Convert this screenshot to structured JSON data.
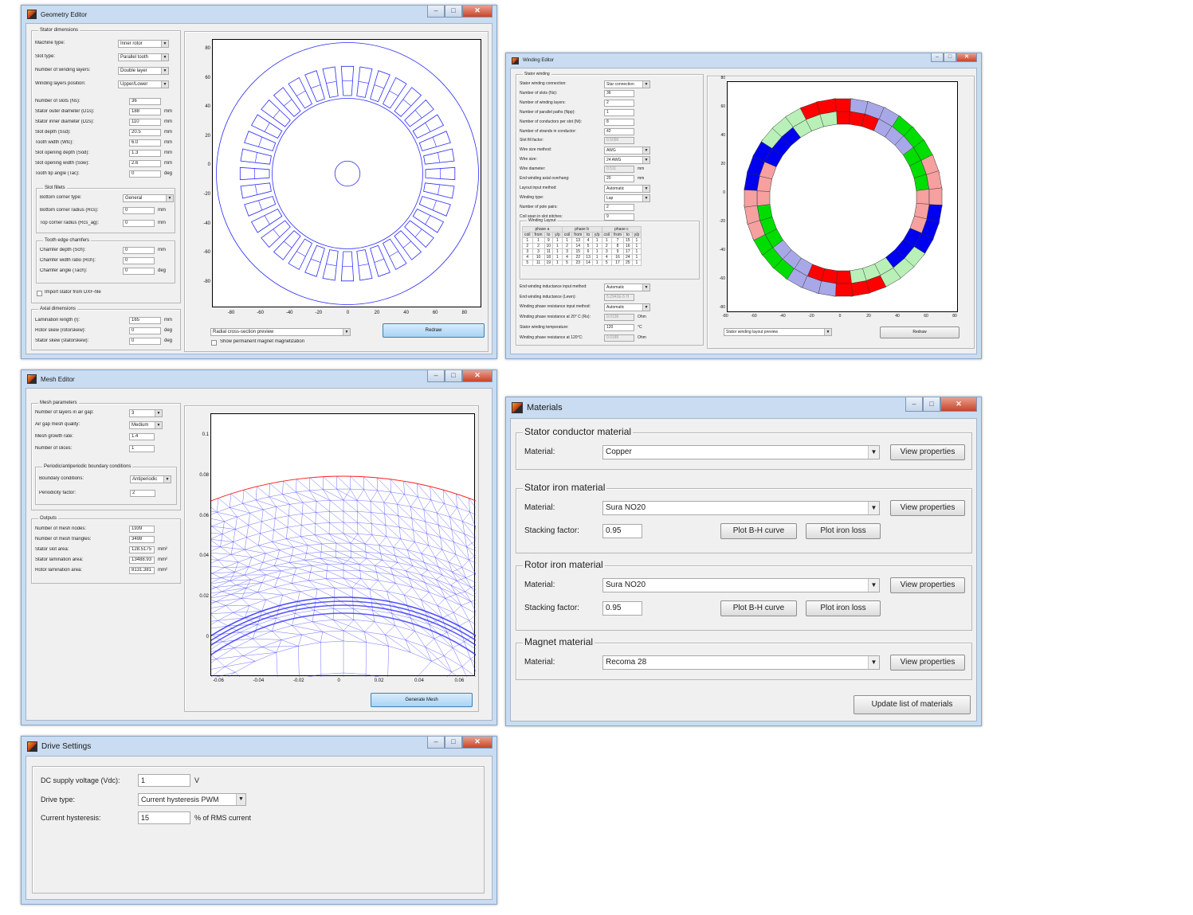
{
  "geometry": {
    "title": "Geometry Editor",
    "stator_group": "Stator dimensions",
    "fields": [
      {
        "label": "Machine type:",
        "value": "Inner rotor",
        "kind": "select"
      },
      {
        "label": "Slot type:",
        "value": "Parallel tooth",
        "kind": "select"
      },
      {
        "label": "Number of winding layers:",
        "value": "Double layer",
        "kind": "select"
      },
      {
        "label": "Winding layers position:",
        "value": "Upper/Lower",
        "kind": "select"
      }
    ],
    "dims": [
      {
        "label": "Number of slots (Ns):",
        "value": "36",
        "unit": ""
      },
      {
        "label": "Stator outer diameter (D1s):",
        "value": "188",
        "unit": "mm"
      },
      {
        "label": "Stator inner diameter (D2s):",
        "value": "110",
        "unit": "mm"
      },
      {
        "label": "Slot depth (Ssd):",
        "value": "20.5",
        "unit": "mm"
      },
      {
        "label": "Tooth width (Wtc):",
        "value": "6.0",
        "unit": "mm"
      },
      {
        "label": "Slot opening depth (Sod):",
        "value": "1.3",
        "unit": "mm"
      },
      {
        "label": "Slot opening width (Sow):",
        "value": "2.6",
        "unit": "mm"
      },
      {
        "label": "Tooth tip angle (Tac):",
        "value": "0",
        "unit": "deg"
      }
    ],
    "slot_fillets_group": "Slot fillets",
    "fillets": [
      {
        "label": "Bottom corner type:",
        "value": "General",
        "unit": "",
        "kind": "select"
      },
      {
        "label": "Bottom corner radius (Rcs):",
        "value": "0",
        "unit": "mm"
      },
      {
        "label": "Top corner radius (Rcs_ag):",
        "value": "0",
        "unit": "mm"
      }
    ],
    "chamfer_group": "Tooth edge chamfers",
    "chamfers": [
      {
        "label": "Chamfer depth (Sch):",
        "value": "0",
        "unit": "mm"
      },
      {
        "label": "Chamfer width ratio (Rch):",
        "value": "0",
        "unit": ""
      },
      {
        "label": "Chamfer angle (Tach):",
        "value": "0",
        "unit": "deg"
      }
    ],
    "import_label": "Import stator from DXF-file",
    "axial_group": "Axial dimensions",
    "axial": [
      {
        "label": "Lamination length (l):",
        "value": "165",
        "unit": "mm"
      },
      {
        "label": "Rotor skew (rotorskew):",
        "value": "0",
        "unit": "deg"
      },
      {
        "label": "Stator skew (statorskew):",
        "value": "0",
        "unit": "deg"
      }
    ],
    "view_select": "Radial cross-section preview",
    "magnet_check": "Show permanent magnet magnetization",
    "redraw": "Redraw",
    "yticks": [
      "80",
      "60",
      "40",
      "20",
      "0",
      "-20",
      "-40",
      "-60",
      "-80"
    ],
    "xticks": [
      "-80",
      "-60",
      "-40",
      "-20",
      "0",
      "20",
      "40",
      "60",
      "80"
    ]
  },
  "winding": {
    "title": "Winding Editor",
    "group": "Stator winding",
    "rows": [
      {
        "label": "Stator winding connection:",
        "value": "Star connection",
        "kind": "select"
      },
      {
        "label": "Number of slots (Ns):",
        "value": "36"
      },
      {
        "label": "Number of winding layers:",
        "value": "2"
      },
      {
        "label": "Number of parallel paths (Npp):",
        "value": "1"
      },
      {
        "label": "Number of conductors per slot (Nt):",
        "value": "8"
      },
      {
        "label": "Number of strands in conductor:",
        "value": "42"
      },
      {
        "label": "Slot fill factor:",
        "value": "0.5090",
        "kind": "dis"
      },
      {
        "label": "Wire size method:",
        "value": "AWG",
        "kind": "select"
      },
      {
        "label": "Wire size:",
        "value": "24 AWG",
        "kind": "select"
      },
      {
        "label": "Wire diameter:",
        "value": "0.511",
        "unit": "mm",
        "kind": "dis"
      },
      {
        "label": "End winding axial overhang:",
        "value": "20",
        "unit": "mm"
      },
      {
        "label": "Layout input method:",
        "value": "Automatic",
        "kind": "select"
      },
      {
        "label": "Winding type:",
        "value": "Lap",
        "kind": "select"
      },
      {
        "label": "Number of pole pairs:",
        "value": "2"
      },
      {
        "label": "Coil span in slot pitches:",
        "value": "9"
      }
    ],
    "layout_group": "Winding Layout",
    "phases": [
      "phase a",
      "phase b",
      "phase c"
    ],
    "table_head": [
      "coil",
      "from",
      "to",
      "y/p"
    ],
    "table_rows": [
      [
        "1",
        "1",
        "9",
        "1",
        "1",
        "13",
        "4",
        "1",
        "1",
        "7",
        "15",
        "1"
      ],
      [
        "2",
        "2",
        "10",
        "1",
        "2",
        "14",
        "5",
        "1",
        "2",
        "8",
        "16",
        "1"
      ],
      [
        "3",
        "3",
        "11",
        "1",
        "3",
        "15",
        "6",
        "1",
        "3",
        "9",
        "17",
        "1"
      ],
      [
        "4",
        "10",
        "18",
        "1",
        "4",
        "22",
        "13",
        "1",
        "4",
        "16",
        "24",
        "1"
      ],
      [
        "5",
        "11",
        "19",
        "1",
        "5",
        "23",
        "14",
        "1",
        "5",
        "17",
        "25",
        "1"
      ]
    ],
    "rows2": [
      {
        "label": "End winding inductance input method:",
        "value": "Automatic",
        "kind": "select"
      },
      {
        "label": "End winding inductance (Lewn):",
        "value": "5.2941E-5 H",
        "kind": "dis"
      },
      {
        "label": "Winding phase resistance input method:",
        "value": "Automatic",
        "kind": "select"
      },
      {
        "label": "Winding phase resistance at 20° C (Rs):",
        "value": "0.0136",
        "unit": "Ohm",
        "kind": "dis"
      },
      {
        "label": "Stator winding temperature:",
        "value": "120",
        "unit": "°C"
      },
      {
        "label": "Winding phase resistance at 120°C:",
        "value": "0.0185",
        "unit": "Ohm",
        "kind": "dis"
      }
    ],
    "view_select": "Stator winding layout preview",
    "redraw": "Redraw",
    "yticks": [
      "80",
      "60",
      "40",
      "20",
      "0",
      "-20",
      "-40",
      "-60",
      "-80"
    ],
    "xticks": [
      "-80",
      "-60",
      "-40",
      "-20",
      "0",
      "20",
      "40",
      "60",
      "80"
    ]
  },
  "mesh": {
    "title": "Mesh Editor",
    "param_group": "Mesh parameters",
    "params": [
      {
        "label": "Number of layers in air gap:",
        "value": "3",
        "kind": "select"
      },
      {
        "label": "Air gap mesh quality:",
        "value": "Medium",
        "kind": "select"
      },
      {
        "label": "Mesh growth rate:",
        "value": "1.4"
      },
      {
        "label": "Number of slices:",
        "value": "1"
      }
    ],
    "bc_group": "Periodic/antiperiodic boundary conditions",
    "bc": [
      {
        "label": "Boundary conditions:",
        "value": "Antiperiodic",
        "kind": "select"
      },
      {
        "label": "Periodicity factor:",
        "value": "2"
      }
    ],
    "out_group": "Outputs",
    "outputs": [
      {
        "label": "Number of mesh nodes:",
        "value": "1939",
        "unit": ""
      },
      {
        "label": "Number of mesh triangles:",
        "value": "3498",
        "unit": ""
      },
      {
        "label": "Stator slot area:",
        "value": "128.5175",
        "unit": "mm²"
      },
      {
        "label": "Stator lamination area:",
        "value": "13488.93",
        "unit": "mm²"
      },
      {
        "label": "Rotor lamination area:",
        "value": "8131.381",
        "unit": "mm²"
      }
    ],
    "generate": "Generate Mesh",
    "yticks": [
      "0.1",
      "0.08",
      "0.06",
      "0.04",
      "0.02",
      "0"
    ],
    "xticks": [
      "-0.06",
      "-0.04",
      "-0.02",
      "0",
      "0.02",
      "0.04",
      "0.06"
    ]
  },
  "materials": {
    "title": "Materials",
    "groups": [
      {
        "title": "Stator conductor material",
        "material_label": "Material:",
        "material": "Copper",
        "view": "View properties",
        "stacking": false
      },
      {
        "title": "Stator iron material",
        "material_label": "Material:",
        "material": "Sura NO20",
        "view": "View properties",
        "stacking": true,
        "stacking_label": "Stacking factor:",
        "stacking_value": "0.95",
        "bh": "Plot B-H curve",
        "loss": "Plot iron loss"
      },
      {
        "title": "Rotor iron material",
        "material_label": "Material:",
        "material": "Sura NO20",
        "view": "View properties",
        "stacking": true,
        "stacking_label": "Stacking factor:",
        "stacking_value": "0.95",
        "bh": "Plot B-H curve",
        "loss": "Plot iron loss"
      },
      {
        "title": "Magnet material",
        "material_label": "Material:",
        "material": "Recoma 28",
        "view": "View properties",
        "stacking": false
      }
    ],
    "update": "Update list of materials"
  },
  "drive": {
    "title": "Drive Settings",
    "dc_label": "DC supply voltage (Vdc):",
    "dc_value": "1",
    "dc_unit": "V",
    "type_label": "Drive type:",
    "type_value": "Current hysteresis PWM",
    "hyst_label": "Current hysteresis:",
    "hyst_value": "15",
    "hyst_unit": "% of RMS current"
  },
  "colors": {
    "phase_a": "#ff0000",
    "phase_a_light": "#f6a0a0",
    "phase_b": "#00dd00",
    "phase_b_light": "#b8f0b8",
    "phase_c": "#0000ee",
    "phase_c_light": "#a8a8e8",
    "plot_line": "#2b2bff",
    "mesh_edge": "#3030ff",
    "mesh_node": "#ff2020"
  }
}
